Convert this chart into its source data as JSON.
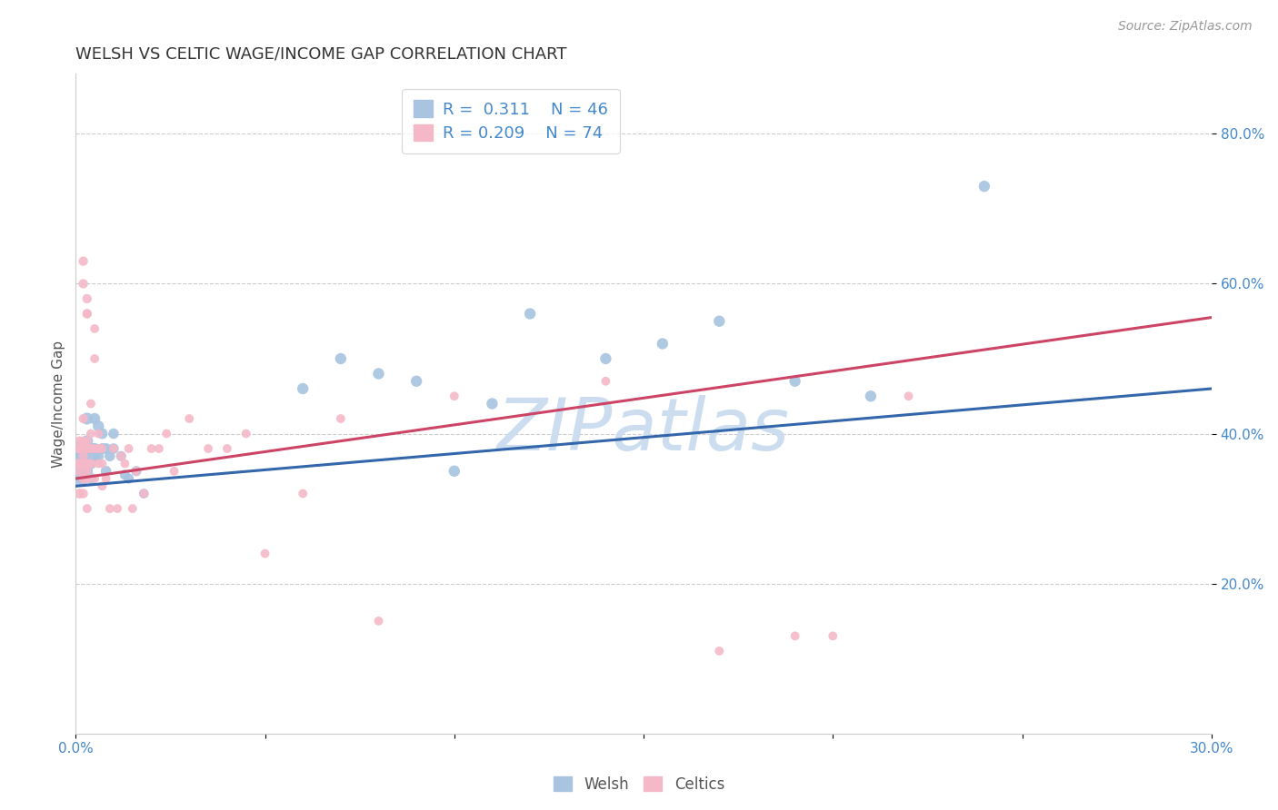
{
  "title": "WELSH VS CELTIC WAGE/INCOME GAP CORRELATION CHART",
  "source": "Source: ZipAtlas.com",
  "ylabel": "Wage/Income Gap",
  "xlim": [
    0.0,
    0.3
  ],
  "ylim": [
    0.0,
    0.88
  ],
  "y_ticks": [
    0.2,
    0.4,
    0.6,
    0.8
  ],
  "y_tick_labels": [
    "20.0%",
    "40.0%",
    "60.0%",
    "80.0%"
  ],
  "x_ticks": [
    0.0,
    0.05,
    0.1,
    0.15,
    0.2,
    0.25,
    0.3
  ],
  "x_tick_labels": [
    "0.0%",
    "",
    "",
    "",
    "",
    "",
    "30.0%"
  ],
  "welsh_color": "#a8c4e0",
  "celtic_color": "#f5b8c8",
  "welsh_line_color": "#3366aa",
  "celtic_line_color": "#cc4466",
  "background_color": "#ffffff",
  "watermark": "ZIPatlas",
  "watermark_color": "#ccddf0",
  "R_welsh": 0.311,
  "N_welsh": 46,
  "R_celtic": 0.209,
  "N_celtic": 74,
  "welsh_line_y0": 0.33,
  "welsh_line_y1": 0.46,
  "celtic_line_y0": 0.34,
  "celtic_line_y1": 0.555,
  "welsh_x": [
    0.001,
    0.001,
    0.001,
    0.001,
    0.002,
    0.002,
    0.002,
    0.002,
    0.002,
    0.003,
    0.003,
    0.003,
    0.003,
    0.004,
    0.004,
    0.004,
    0.005,
    0.005,
    0.005,
    0.006,
    0.006,
    0.007,
    0.007,
    0.008,
    0.008,
    0.009,
    0.01,
    0.01,
    0.012,
    0.013,
    0.014,
    0.016,
    0.018,
    0.06,
    0.07,
    0.08,
    0.09,
    0.1,
    0.11,
    0.12,
    0.14,
    0.155,
    0.17,
    0.19,
    0.21,
    0.24
  ],
  "welsh_y": [
    0.355,
    0.375,
    0.34,
    0.38,
    0.355,
    0.38,
    0.36,
    0.37,
    0.34,
    0.42,
    0.39,
    0.35,
    0.36,
    0.38,
    0.34,
    0.36,
    0.42,
    0.38,
    0.37,
    0.41,
    0.37,
    0.38,
    0.4,
    0.38,
    0.35,
    0.37,
    0.38,
    0.4,
    0.37,
    0.345,
    0.34,
    0.35,
    0.32,
    0.46,
    0.5,
    0.48,
    0.47,
    0.35,
    0.44,
    0.56,
    0.5,
    0.52,
    0.55,
    0.47,
    0.45,
    0.73
  ],
  "welsh_sizes": [
    120,
    150,
    130,
    180,
    100,
    130,
    110,
    120,
    100,
    90,
    90,
    85,
    90,
    85,
    80,
    80,
    80,
    80,
    80,
    80,
    75,
    75,
    75,
    75,
    70,
    70,
    70,
    70,
    65,
    65,
    65,
    65,
    60,
    80,
    80,
    80,
    80,
    80,
    80,
    80,
    80,
    80,
    80,
    80,
    80,
    80
  ],
  "celtic_x": [
    0.001,
    0.001,
    0.001,
    0.001,
    0.001,
    0.001,
    0.001,
    0.002,
    0.002,
    0.002,
    0.002,
    0.002,
    0.002,
    0.002,
    0.002,
    0.002,
    0.003,
    0.003,
    0.003,
    0.003,
    0.003,
    0.003,
    0.003,
    0.003,
    0.003,
    0.003,
    0.003,
    0.003,
    0.004,
    0.004,
    0.004,
    0.004,
    0.004,
    0.004,
    0.004,
    0.005,
    0.005,
    0.005,
    0.005,
    0.006,
    0.006,
    0.006,
    0.006,
    0.007,
    0.007,
    0.007,
    0.008,
    0.009,
    0.01,
    0.011,
    0.012,
    0.013,
    0.014,
    0.015,
    0.016,
    0.018,
    0.02,
    0.022,
    0.024,
    0.026,
    0.03,
    0.035,
    0.04,
    0.045,
    0.05,
    0.06,
    0.07,
    0.08,
    0.1,
    0.14,
    0.17,
    0.19,
    0.2,
    0.22
  ],
  "celtic_y": [
    0.38,
    0.35,
    0.32,
    0.36,
    0.39,
    0.36,
    0.38,
    0.38,
    0.36,
    0.34,
    0.39,
    0.42,
    0.6,
    0.63,
    0.37,
    0.32,
    0.38,
    0.56,
    0.58,
    0.36,
    0.34,
    0.38,
    0.56,
    0.34,
    0.38,
    0.35,
    0.39,
    0.3,
    0.38,
    0.36,
    0.36,
    0.4,
    0.44,
    0.38,
    0.36,
    0.38,
    0.34,
    0.5,
    0.54,
    0.38,
    0.36,
    0.4,
    0.38,
    0.38,
    0.36,
    0.33,
    0.34,
    0.3,
    0.38,
    0.3,
    0.37,
    0.36,
    0.38,
    0.3,
    0.35,
    0.32,
    0.38,
    0.38,
    0.4,
    0.35,
    0.42,
    0.38,
    0.38,
    0.4,
    0.24,
    0.32,
    0.42,
    0.15,
    0.45,
    0.47,
    0.11,
    0.13,
    0.13,
    0.45
  ],
  "celtic_sizes": [
    60,
    60,
    60,
    60,
    60,
    55,
    55,
    60,
    60,
    55,
    55,
    55,
    55,
    55,
    55,
    55,
    55,
    55,
    55,
    55,
    50,
    50,
    50,
    50,
    50,
    50,
    50,
    50,
    50,
    50,
    50,
    50,
    50,
    50,
    50,
    50,
    50,
    50,
    50,
    50,
    50,
    50,
    50,
    50,
    50,
    50,
    50,
    50,
    50,
    50,
    50,
    50,
    50,
    50,
    50,
    50,
    50,
    50,
    50,
    50,
    50,
    50,
    50,
    50,
    50,
    50,
    50,
    50,
    50,
    50,
    50,
    50,
    50,
    50
  ],
  "title_fontsize": 13,
  "axis_label_fontsize": 11,
  "tick_fontsize": 11,
  "legend_fontsize": 13,
  "source_fontsize": 10
}
